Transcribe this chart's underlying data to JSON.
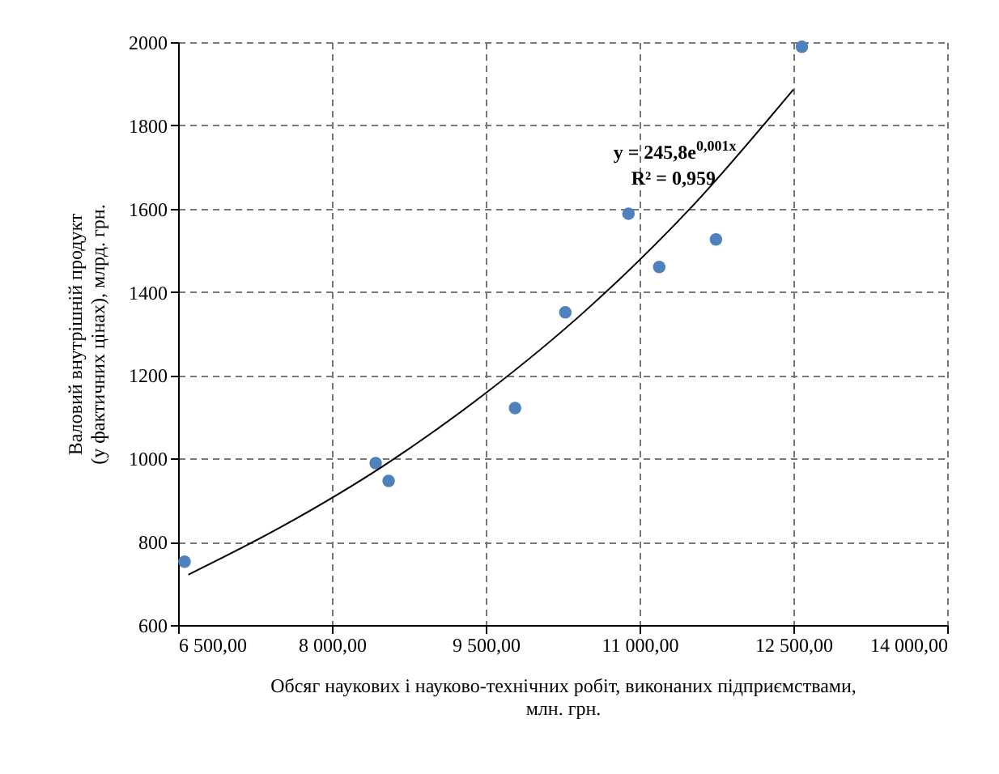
{
  "chart_data": {
    "type": "scatter",
    "xlabel": "Обсяг наукових і науково-технічних робіт, виконаних підприємствами,\nмлн. грн.",
    "ylabel": "Валовий внутрішній продукт\n(у фактичних цінах), млрд. грн.",
    "x": [
      6563,
      8427,
      8553,
      9786,
      10276,
      10892,
      11192,
      11745,
      12583
    ],
    "series": [
      {
        "color": "#4f81bd",
        "marker": "circle",
        "values": [
          752,
          989,
          946,
          1121,
          1351,
          1588,
          1460,
          1526,
          1989
        ]
      },
      {
        "type": "line",
        "color": "#000000",
        "marker": "none",
        "line_style": "solid",
        "x": [
          6600,
          7500,
          8500,
          9500,
          10500,
          11500,
          12500
        ],
        "values": [
          721,
          835,
          982,
          1157,
          1361,
          1602,
          1886
        ]
      }
    ],
    "xlim": [
      6500,
      14000
    ],
    "xticks": [
      {
        "value": 6500,
        "label": "6 500,00"
      },
      {
        "value": 8000,
        "label": "8 000,00"
      },
      {
        "value": 9500,
        "label": "9 500,00"
      },
      {
        "value": 11000,
        "label": "11 000,00"
      },
      {
        "value": 12500,
        "label": "12 500,00"
      },
      {
        "value": 14000,
        "label": "14 000,00"
      }
    ],
    "ylim": [
      600,
      2000
    ],
    "yticks": [
      600,
      800,
      1000,
      1200,
      1400,
      1600,
      1800,
      2000
    ],
    "grid": true,
    "annotations": [
      "y = 245,8e$^{0,001x}$",
      "R² = 0,959"
    ]
  }
}
